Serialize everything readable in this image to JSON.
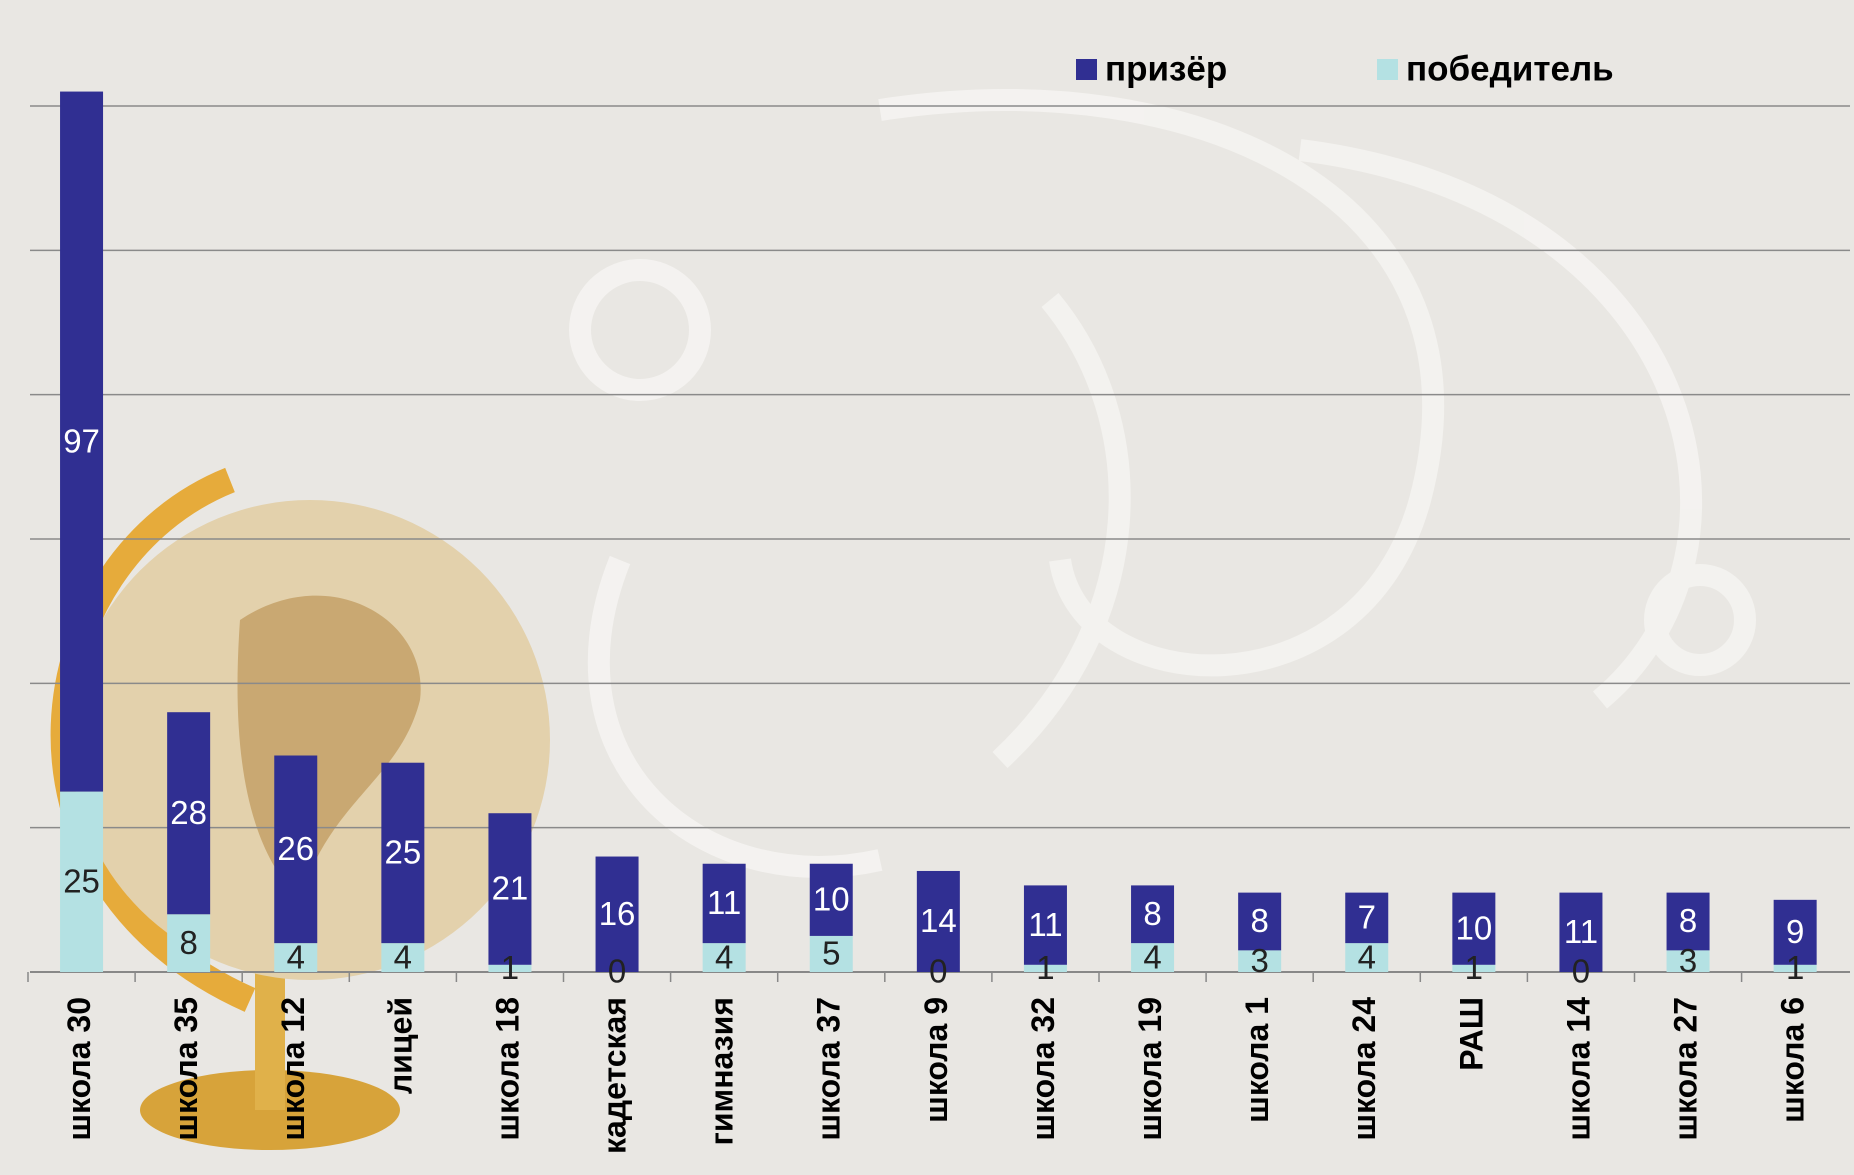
{
  "chart_data": {
    "type": "stacked-bar",
    "categories": [
      "школа 30",
      "школа 35",
      "школа 12",
      "лицей",
      "школа 18",
      "кадетская",
      "гимназия",
      "школа 37",
      "школа 9",
      "школа 32",
      "школа 19",
      "школа 1",
      "школа 24",
      "РАШ",
      "школа 14",
      "школа 27",
      "школа 6"
    ],
    "series": [
      {
        "name": "победитель",
        "color": "#b4e1e3",
        "values": [
          25,
          8,
          4,
          4,
          1,
          0,
          4,
          5,
          0,
          1,
          4,
          3,
          4,
          1,
          0,
          3,
          1
        ]
      },
      {
        "name": "призёр",
        "color": "#302f92",
        "values": [
          97,
          28,
          26,
          25,
          21,
          16,
          11,
          10,
          14,
          11,
          8,
          8,
          7,
          10,
          11,
          8,
          9
        ]
      }
    ],
    "legend_order": [
      1,
      0
    ],
    "ylim": [
      0,
      120
    ],
    "yticks": [
      0,
      20,
      40,
      60,
      80,
      100,
      120
    ],
    "grid": true
  }
}
